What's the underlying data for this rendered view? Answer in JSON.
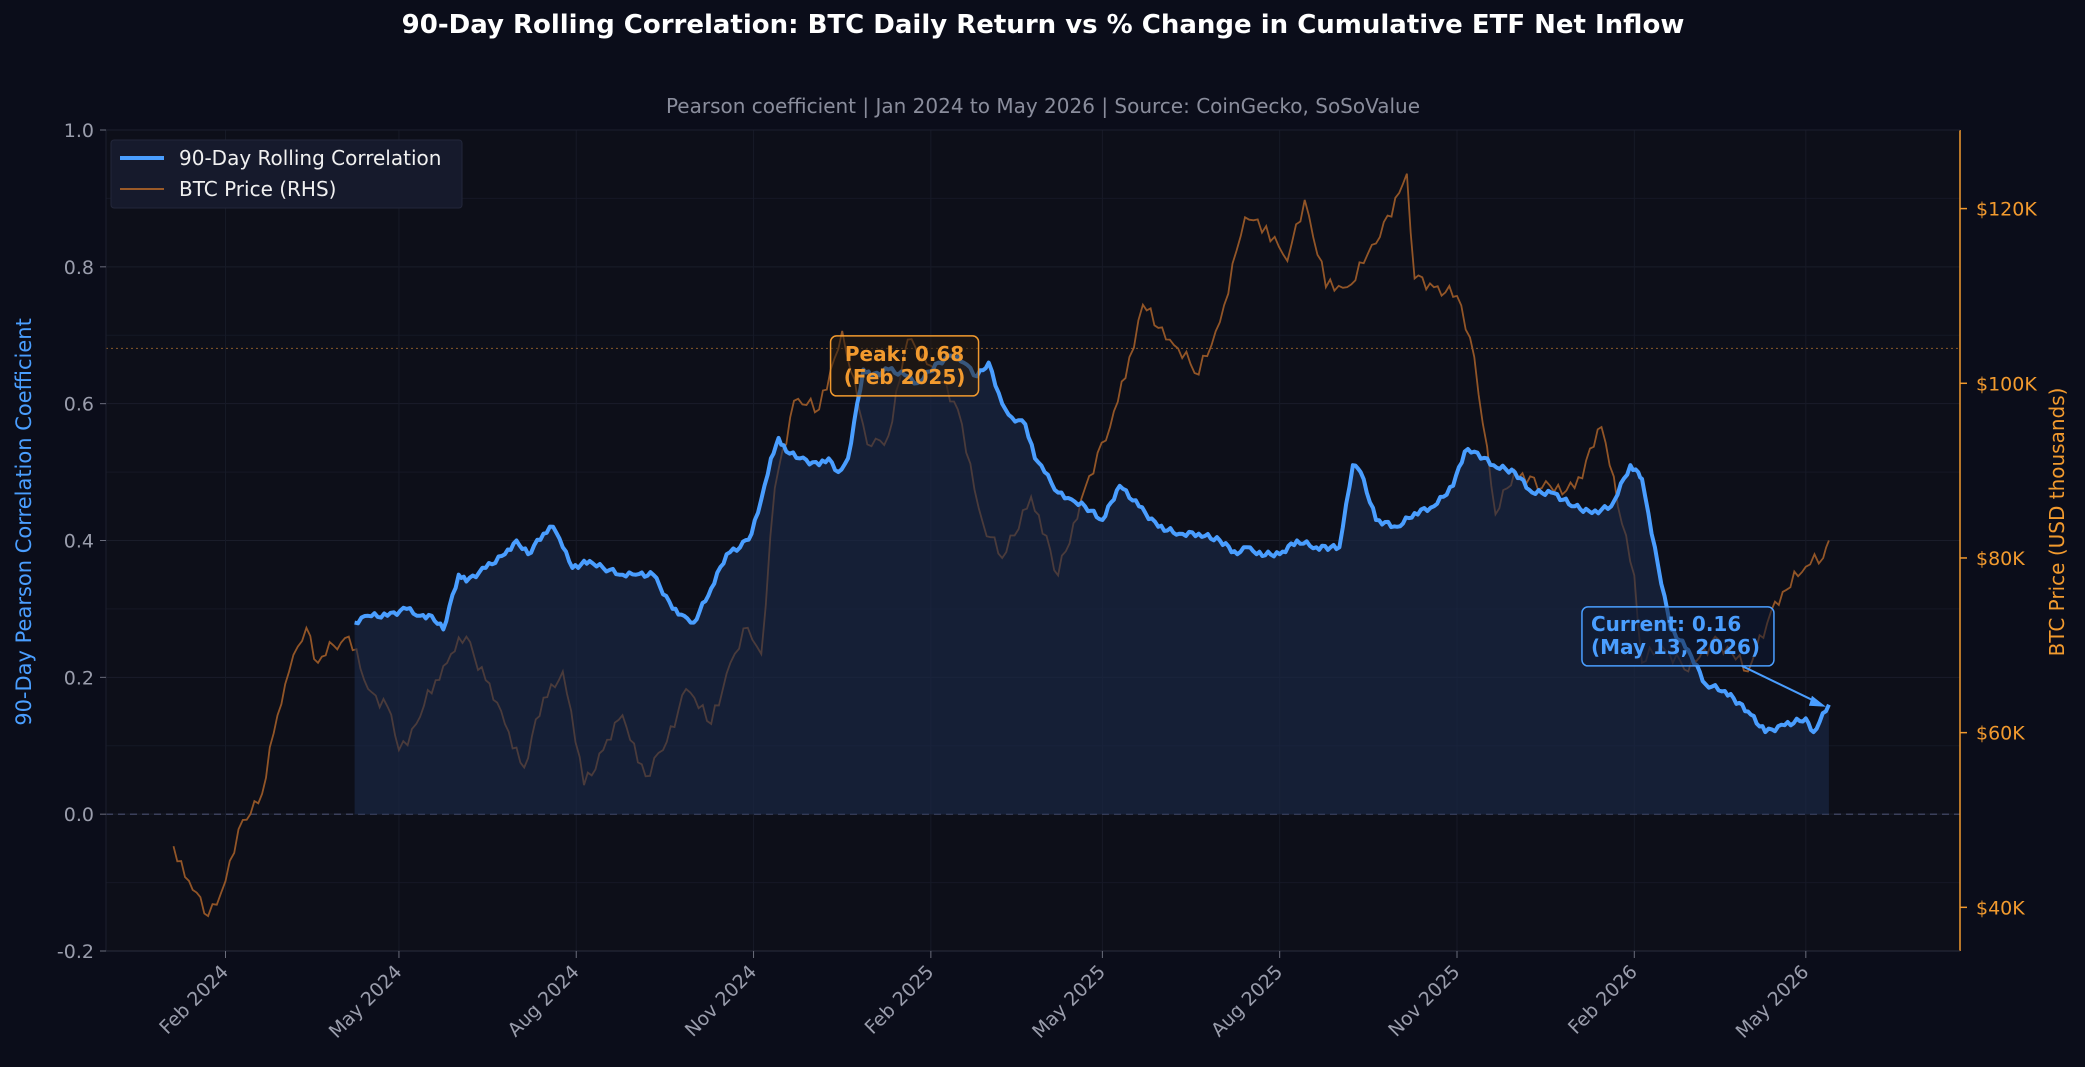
{
  "colors": {
    "background": "#0b0d1a",
    "plot_background": "#0d0f19",
    "correlation": "#4a9eff",
    "correlation_fill": "#1a2a4a",
    "btc_price": "#9a5a28",
    "right_axis": "#f29a2e",
    "peak_annotation": "#f29a2e",
    "current_annotation": "#4a9eff"
  },
  "chart_data": {
    "type": "line",
    "title": "90-Day Rolling Correlation: BTC Daily Return vs % Change in Cumulative ETF Net Inflow",
    "subtitle": "Pearson coefficient  |  Jan 2024 to May 2026  |  Source: CoinGecko, SoSoValue",
    "ylabel": "90-Day Pearson Correlation Coefficient",
    "y2label": "BTC Price (USD thousands)",
    "ylim": [
      -0.2,
      1.0
    ],
    "y2lim": [
      35,
      129
    ],
    "xlim": [
      "2023-12-01",
      "2026-07-20"
    ],
    "yticks": [
      -0.2,
      0.0,
      0.2,
      0.4,
      0.6,
      0.8,
      1.0
    ],
    "ytick_labels": [
      "-0.2",
      "0.0",
      "0.2",
      "0.4",
      "0.6",
      "0.8",
      "1.0"
    ],
    "y2ticks": [
      40,
      60,
      80,
      100,
      120
    ],
    "y2tick_labels": [
      "$40K",
      "$60K",
      "$80K",
      "$100K",
      "$120K"
    ],
    "xticks": [
      "2024-02-01",
      "2024-05-01",
      "2024-08-01",
      "2024-11-01",
      "2025-02-01",
      "2025-05-01",
      "2025-08-01",
      "2025-11-01",
      "2026-02-01",
      "2026-05-01"
    ],
    "xtick_labels": [
      "Feb 2024",
      "May 2024",
      "Aug 2024",
      "Nov 2024",
      "Feb 2025",
      "May 2025",
      "Aug 2025",
      "Nov 2025",
      "Feb 2026",
      "May 2026"
    ],
    "legend_position": "top-left",
    "grid": true,
    "reference_lines": {
      "zero": 0.0,
      "btc_price_level": 104
    },
    "legend": [
      "90-Day Rolling Correlation",
      "BTC Price (RHS)"
    ],
    "series": [
      {
        "name": "90-Day Rolling Correlation",
        "axis": "left",
        "x": [
          "2024-04-08",
          "2024-04-15",
          "2024-04-25",
          "2024-05-05",
          "2024-05-12",
          "2024-05-18",
          "2024-05-24",
          "2024-06-01",
          "2024-06-05",
          "2024-06-15",
          "2024-06-25",
          "2024-07-01",
          "2024-07-07",
          "2024-07-15",
          "2024-07-20",
          "2024-07-25",
          "2024-07-30",
          "2024-08-08",
          "2024-08-15",
          "2024-08-25",
          "2024-09-01",
          "2024-09-10",
          "2024-09-20",
          "2024-09-26",
          "2024-10-01",
          "2024-10-10",
          "2024-10-18",
          "2024-10-25",
          "2024-10-31",
          "2024-11-05",
          "2024-11-10",
          "2024-11-14",
          "2024-11-18",
          "2024-11-25",
          "2024-12-05",
          "2024-12-10",
          "2024-12-15",
          "2024-12-20",
          "2024-12-28",
          "2025-01-01",
          "2025-01-10",
          "2025-01-20",
          "2025-01-25",
          "2025-02-05",
          "2025-02-12",
          "2025-02-18",
          "2025-02-25",
          "2025-03-03",
          "2025-03-10",
          "2025-03-15",
          "2025-03-22",
          "2025-03-27",
          "2025-04-01",
          "2025-04-08",
          "2025-04-15",
          "2025-04-22",
          "2025-05-01",
          "2025-05-10",
          "2025-05-20",
          "2025-05-30",
          "2025-06-10",
          "2025-06-20",
          "2025-07-01",
          "2025-07-10",
          "2025-07-15",
          "2025-07-20",
          "2025-08-01",
          "2025-08-10",
          "2025-08-20",
          "2025-09-01",
          "2025-09-08",
          "2025-09-12",
          "2025-09-20",
          "2025-10-01",
          "2025-10-10",
          "2025-10-20",
          "2025-10-30",
          "2025-11-05",
          "2025-11-10",
          "2025-11-20",
          "2025-12-01",
          "2025-12-10",
          "2025-12-20",
          "2026-01-01",
          "2026-01-10",
          "2026-01-20",
          "2026-01-30",
          "2026-02-03",
          "2026-02-05",
          "2026-02-10",
          "2026-02-20",
          "2026-03-01",
          "2026-03-10",
          "2026-03-20",
          "2026-04-01",
          "2026-04-10",
          "2026-04-20",
          "2026-05-01",
          "2026-05-05",
          "2026-05-13"
        ],
        "y": [
          0.28,
          0.29,
          0.29,
          0.3,
          0.29,
          0.29,
          0.27,
          0.35,
          0.34,
          0.36,
          0.38,
          0.4,
          0.38,
          0.41,
          0.42,
          0.39,
          0.36,
          0.37,
          0.36,
          0.35,
          0.35,
          0.35,
          0.3,
          0.29,
          0.28,
          0.33,
          0.38,
          0.39,
          0.41,
          0.46,
          0.52,
          0.55,
          0.53,
          0.52,
          0.51,
          0.52,
          0.5,
          0.52,
          0.65,
          0.64,
          0.65,
          0.64,
          0.63,
          0.66,
          0.67,
          0.66,
          0.64,
          0.66,
          0.6,
          0.58,
          0.57,
          0.52,
          0.5,
          0.47,
          0.46,
          0.45,
          0.43,
          0.48,
          0.45,
          0.42,
          0.41,
          0.41,
          0.4,
          0.38,
          0.39,
          0.38,
          0.38,
          0.4,
          0.39,
          0.39,
          0.51,
          0.5,
          0.43,
          0.42,
          0.44,
          0.45,
          0.48,
          0.53,
          0.53,
          0.51,
          0.5,
          0.47,
          0.47,
          0.45,
          0.44,
          0.45,
          0.51,
          0.5,
          0.49,
          0.41,
          0.27,
          0.24,
          0.19,
          0.18,
          0.15,
          0.12,
          0.13,
          0.14,
          0.12,
          0.16
        ]
      },
      {
        "name": "BTC Price (RHS)",
        "axis": "right",
        "x": [
          "2024-01-05",
          "2024-01-15",
          "2024-01-23",
          "2024-02-01",
          "2024-02-10",
          "2024-02-20",
          "2024-02-28",
          "2024-03-05",
          "2024-03-14",
          "2024-03-20",
          "2024-03-28",
          "2024-04-05",
          "2024-04-15",
          "2024-04-25",
          "2024-05-01",
          "2024-05-10",
          "2024-05-20",
          "2024-05-28",
          "2024-06-05",
          "2024-06-15",
          "2024-06-25",
          "2024-07-05",
          "2024-07-15",
          "2024-07-25",
          "2024-08-05",
          "2024-08-15",
          "2024-08-25",
          "2024-09-06",
          "2024-09-15",
          "2024-09-27",
          "2024-10-10",
          "2024-10-20",
          "2024-10-29",
          "2024-11-05",
          "2024-11-12",
          "2024-11-22",
          "2024-12-05",
          "2024-12-17",
          "2024-12-30",
          "2025-01-10",
          "2025-01-20",
          "2025-02-01",
          "2025-02-15",
          "2025-02-28",
          "2025-03-10",
          "2025-03-25",
          "2025-04-08",
          "2025-04-22",
          "2025-05-05",
          "2025-05-15",
          "2025-05-22",
          "2025-06-05",
          "2025-06-20",
          "2025-07-01",
          "2025-07-14",
          "2025-07-25",
          "2025-08-05",
          "2025-08-14",
          "2025-08-25",
          "2025-09-05",
          "2025-09-20",
          "2025-10-06",
          "2025-10-10",
          "2025-10-20",
          "2025-11-01",
          "2025-11-10",
          "2025-11-21",
          "2025-12-01",
          "2025-12-15",
          "2026-01-01",
          "2026-01-15",
          "2026-02-01",
          "2026-02-05",
          "2026-02-15",
          "2026-03-01",
          "2026-03-15",
          "2026-04-01",
          "2026-04-15",
          "2026-05-01",
          "2026-05-10",
          "2026-05-13"
        ],
        "y": [
          47,
          42,
          39,
          43,
          50,
          53,
          62,
          67,
          72,
          68,
          70,
          71,
          65,
          63,
          58,
          61,
          66,
          69,
          71,
          66,
          61,
          56,
          64,
          67,
          54,
          58,
          62,
          55,
          58,
          65,
          61,
          68,
          72,
          69,
          88,
          98,
          97,
          106,
          93,
          94,
          105,
          102,
          97,
          84,
          80,
          87,
          78,
          88,
          95,
          103,
          109,
          105,
          101,
          107,
          119,
          118,
          114,
          121,
          111,
          111,
          116,
          124,
          112,
          111,
          110,
          103,
          85,
          90,
          88,
          88,
          95,
          78,
          68,
          70,
          67,
          71,
          67,
          75,
          79,
          80,
          82
        ]
      }
    ],
    "annotations": [
      {
        "text": "Peak: 0.68\n(Feb 2025)",
        "x": "2025-02-05",
        "y": 0.68
      },
      {
        "text": "Current: 0.16\n(May 13, 2026)",
        "x": "2026-05-13",
        "y": 0.16
      }
    ]
  }
}
